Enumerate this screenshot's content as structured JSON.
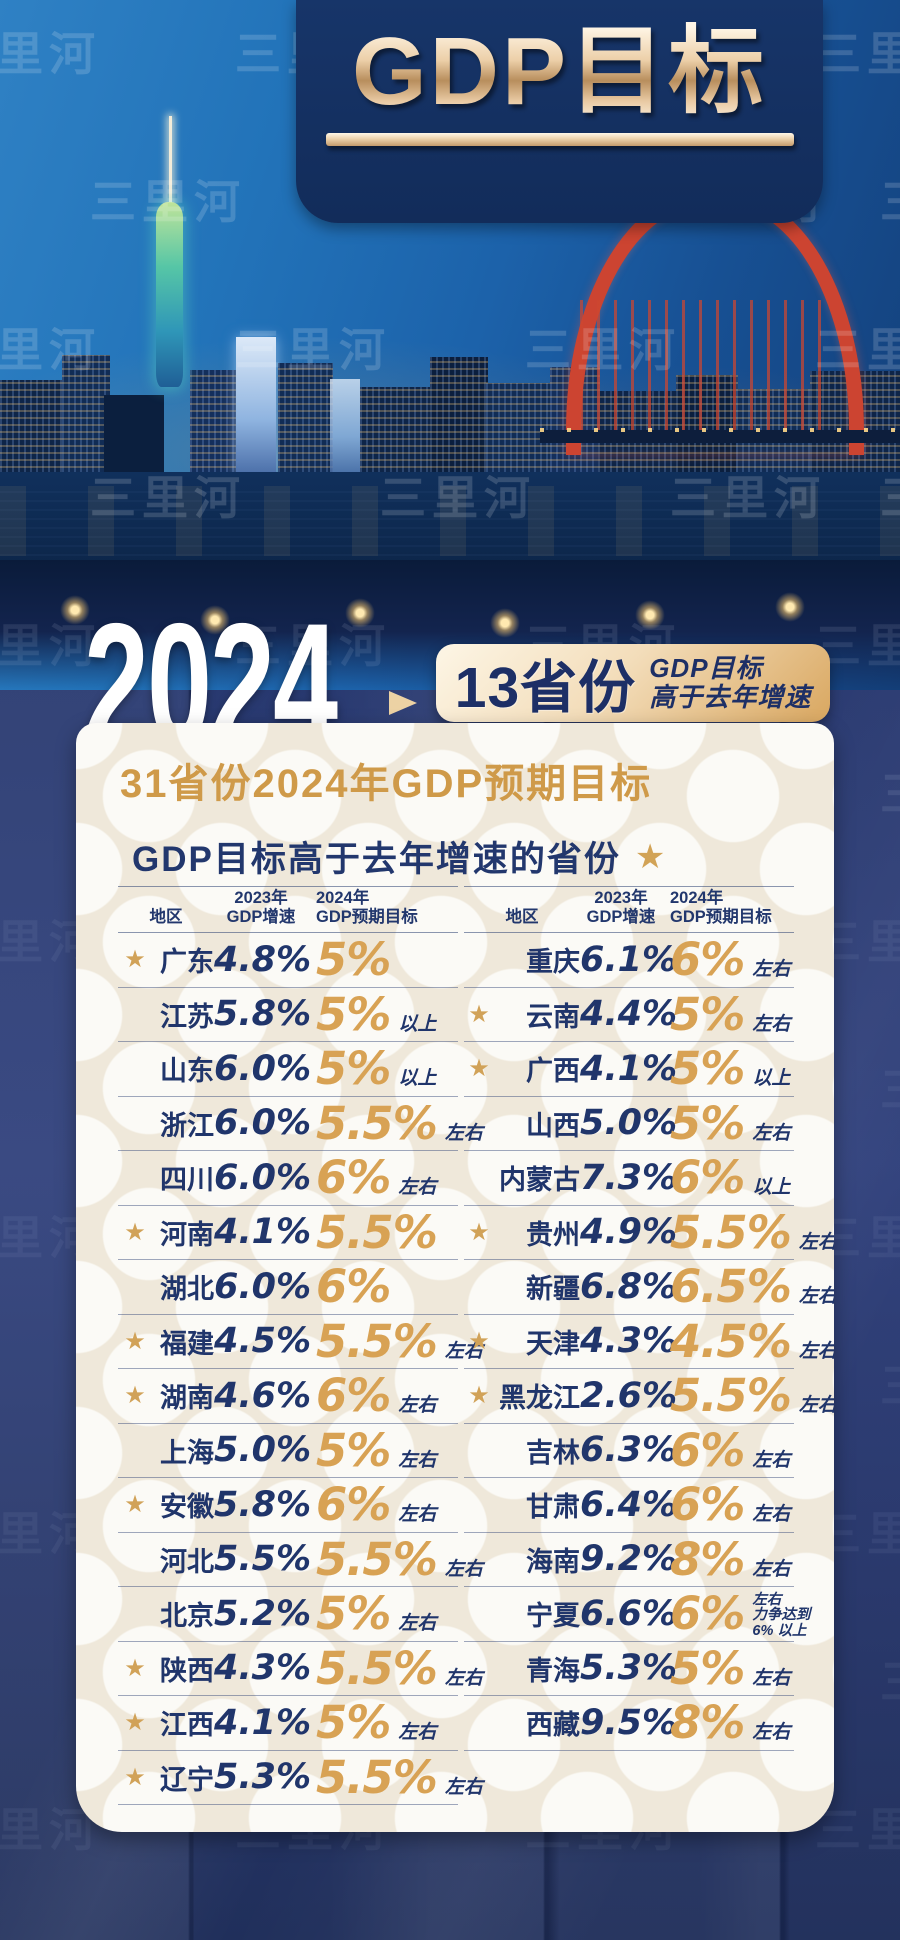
{
  "watermark_text": "三里河",
  "header": {
    "title": "GDP目标"
  },
  "hero": {
    "year": "2024",
    "badge_count": "13省份",
    "badge_line1": "GDP目标",
    "badge_line2": "高于去年增速"
  },
  "card": {
    "title": "31省份2024年GDP预期目标",
    "subtitle": "GDP目标高于去年增速的省份",
    "table_header": {
      "region": "地区",
      "col2023_line1": "2023年",
      "col2023_line2": "GDP增速",
      "col2024_line1": "2024年",
      "col2024_line2": "GDP预期目标"
    },
    "left_rows": [
      {
        "star": true,
        "region": "广东",
        "growth": "4.8%",
        "target": "5%",
        "suffix": []
      },
      {
        "star": false,
        "region": "江苏",
        "growth": "5.8%",
        "target": "5%",
        "suffix": [
          "以上"
        ]
      },
      {
        "star": false,
        "region": "山东",
        "growth": "6.0%",
        "target": "5%",
        "suffix": [
          "以上"
        ]
      },
      {
        "star": false,
        "region": "浙江",
        "growth": "6.0%",
        "target": "5.5%",
        "suffix": [
          "左右"
        ]
      },
      {
        "star": false,
        "region": "四川",
        "growth": "6.0%",
        "target": "6%",
        "suffix": [
          "左右"
        ]
      },
      {
        "star": true,
        "region": "河南",
        "growth": "4.1%",
        "target": "5.5%",
        "suffix": []
      },
      {
        "star": false,
        "region": "湖北",
        "growth": "6.0%",
        "target": "6%",
        "suffix": []
      },
      {
        "star": true,
        "region": "福建",
        "growth": "4.5%",
        "target": "5.5%",
        "suffix": [
          "左右"
        ]
      },
      {
        "star": true,
        "region": "湖南",
        "growth": "4.6%",
        "target": "6%",
        "suffix": [
          "左右"
        ]
      },
      {
        "star": false,
        "region": "上海",
        "growth": "5.0%",
        "target": "5%",
        "suffix": [
          "左右"
        ]
      },
      {
        "star": true,
        "region": "安徽",
        "growth": "5.8%",
        "target": "6%",
        "suffix": [
          "左右"
        ]
      },
      {
        "star": false,
        "region": "河北",
        "growth": "5.5%",
        "target": "5.5%",
        "suffix": [
          "左右"
        ]
      },
      {
        "star": false,
        "region": "北京",
        "growth": "5.2%",
        "target": "5%",
        "suffix": [
          "左右"
        ]
      },
      {
        "star": true,
        "region": "陕西",
        "growth": "4.3%",
        "target": "5.5%",
        "suffix": [
          "左右"
        ]
      },
      {
        "star": true,
        "region": "江西",
        "growth": "4.1%",
        "target": "5%",
        "suffix": [
          "左右"
        ]
      },
      {
        "star": true,
        "region": "辽宁",
        "growth": "5.3%",
        "target": "5.5%",
        "suffix": [
          "左右"
        ]
      }
    ],
    "right_rows": [
      {
        "star": false,
        "region": "重庆",
        "growth": "6.1%",
        "target": "6%",
        "suffix": [
          "左右"
        ]
      },
      {
        "star": true,
        "region": "云南",
        "growth": "4.4%",
        "target": "5%",
        "suffix": [
          "左右"
        ]
      },
      {
        "star": true,
        "region": "广西",
        "growth": "4.1%",
        "target": "5%",
        "suffix": [
          "以上"
        ]
      },
      {
        "star": false,
        "region": "山西",
        "growth": "5.0%",
        "target": "5%",
        "suffix": [
          "左右"
        ]
      },
      {
        "star": false,
        "region": "内蒙古",
        "growth": "7.3%",
        "target": "6%",
        "suffix": [
          "以上"
        ]
      },
      {
        "star": true,
        "region": "贵州",
        "growth": "4.9%",
        "target": "5.5%",
        "suffix": [
          "左右"
        ]
      },
      {
        "star": false,
        "region": "新疆",
        "growth": "6.8%",
        "target": "6.5%",
        "suffix": [
          "左右"
        ]
      },
      {
        "star": true,
        "region": "天津",
        "growth": "4.3%",
        "target": "4.5%",
        "suffix": [
          "左右"
        ]
      },
      {
        "star": true,
        "region": "黑龙江",
        "growth": "2.6%",
        "target": "5.5%",
        "suffix": [
          "左右"
        ]
      },
      {
        "star": false,
        "region": "吉林",
        "growth": "6.3%",
        "target": "6%",
        "suffix": [
          "左右"
        ]
      },
      {
        "star": false,
        "region": "甘肃",
        "growth": "6.4%",
        "target": "6%",
        "suffix": [
          "左右"
        ]
      },
      {
        "star": false,
        "region": "海南",
        "growth": "9.2%",
        "target": "8%",
        "suffix": [
          "左右"
        ]
      },
      {
        "star": false,
        "region": "宁夏",
        "growth": "6.6%",
        "target": "6%",
        "suffix": [
          "左右",
          "力争达到",
          "6% 以上"
        ]
      },
      {
        "star": false,
        "region": "青海",
        "growth": "5.3%",
        "target": "5%",
        "suffix": [
          "左右"
        ]
      },
      {
        "star": false,
        "region": "西藏",
        "growth": "9.5%",
        "target": "8%",
        "suffix": [
          "左右"
        ]
      }
    ]
  },
  "colors": {
    "navy_text": "#20356b",
    "gold_value": "#d8a254",
    "title_gold": "#cf9a49",
    "badge_gradient_from": "#fdf6e6",
    "badge_gradient_to": "#d9a760",
    "header_panel": "#173569",
    "star": "#d1a258"
  },
  "chart_data": {
    "type": "table",
    "title": "31省份2024年GDP预期目标",
    "subtitle": "GDP目标高于去年增速的省份",
    "note_badge": "13省份GDP目标高于去年增速",
    "columns": [
      "地区",
      "2023年GDP增速",
      "2024年GDP预期目标"
    ],
    "rows": [
      {
        "region": "广东",
        "growth_2023": "4.8%",
        "target_2024": "5%",
        "higher_than_last_year": true
      },
      {
        "region": "江苏",
        "growth_2023": "5.8%",
        "target_2024": "5%以上",
        "higher_than_last_year": false
      },
      {
        "region": "山东",
        "growth_2023": "6.0%",
        "target_2024": "5%以上",
        "higher_than_last_year": false
      },
      {
        "region": "浙江",
        "growth_2023": "6.0%",
        "target_2024": "5.5%左右",
        "higher_than_last_year": false
      },
      {
        "region": "四川",
        "growth_2023": "6.0%",
        "target_2024": "6%左右",
        "higher_than_last_year": false
      },
      {
        "region": "河南",
        "growth_2023": "4.1%",
        "target_2024": "5.5%",
        "higher_than_last_year": true
      },
      {
        "region": "湖北",
        "growth_2023": "6.0%",
        "target_2024": "6%",
        "higher_than_last_year": false
      },
      {
        "region": "福建",
        "growth_2023": "4.5%",
        "target_2024": "5.5%左右",
        "higher_than_last_year": true
      },
      {
        "region": "湖南",
        "growth_2023": "4.6%",
        "target_2024": "6%左右",
        "higher_than_last_year": true
      },
      {
        "region": "上海",
        "growth_2023": "5.0%",
        "target_2024": "5%左右",
        "higher_than_last_year": false
      },
      {
        "region": "安徽",
        "growth_2023": "5.8%",
        "target_2024": "6%左右",
        "higher_than_last_year": true
      },
      {
        "region": "河北",
        "growth_2023": "5.5%",
        "target_2024": "5.5%左右",
        "higher_than_last_year": false
      },
      {
        "region": "北京",
        "growth_2023": "5.2%",
        "target_2024": "5%左右",
        "higher_than_last_year": false
      },
      {
        "region": "陕西",
        "growth_2023": "4.3%",
        "target_2024": "5.5%左右",
        "higher_than_last_year": true
      },
      {
        "region": "江西",
        "growth_2023": "4.1%",
        "target_2024": "5%左右",
        "higher_than_last_year": true
      },
      {
        "region": "辽宁",
        "growth_2023": "5.3%",
        "target_2024": "5.5%左右",
        "higher_than_last_year": true
      },
      {
        "region": "重庆",
        "growth_2023": "6.1%",
        "target_2024": "6%左右",
        "higher_than_last_year": false
      },
      {
        "region": "云南",
        "growth_2023": "4.4%",
        "target_2024": "5%左右",
        "higher_than_last_year": true
      },
      {
        "region": "广西",
        "growth_2023": "4.1%",
        "target_2024": "5%以上",
        "higher_than_last_year": true
      },
      {
        "region": "山西",
        "growth_2023": "5.0%",
        "target_2024": "5%左右",
        "higher_than_last_year": false
      },
      {
        "region": "内蒙古",
        "growth_2023": "7.3%",
        "target_2024": "6%以上",
        "higher_than_last_year": false
      },
      {
        "region": "贵州",
        "growth_2023": "4.9%",
        "target_2024": "5.5%左右",
        "higher_than_last_year": true
      },
      {
        "region": "新疆",
        "growth_2023": "6.8%",
        "target_2024": "6.5%左右",
        "higher_than_last_year": false
      },
      {
        "region": "天津",
        "growth_2023": "4.3%",
        "target_2024": "4.5%左右",
        "higher_than_last_year": true
      },
      {
        "region": "黑龙江",
        "growth_2023": "2.6%",
        "target_2024": "5.5%左右",
        "higher_than_last_year": true
      },
      {
        "region": "吉林",
        "growth_2023": "6.3%",
        "target_2024": "6%左右",
        "higher_than_last_year": false
      },
      {
        "region": "甘肃",
        "growth_2023": "6.4%",
        "target_2024": "6%左右",
        "higher_than_last_year": false
      },
      {
        "region": "海南",
        "growth_2023": "9.2%",
        "target_2024": "8%左右",
        "higher_than_last_year": false
      },
      {
        "region": "宁夏",
        "growth_2023": "6.6%",
        "target_2024": "6%左右，力争达到6%以上",
        "higher_than_last_year": false
      },
      {
        "region": "青海",
        "growth_2023": "5.3%",
        "target_2024": "5%左右",
        "higher_than_last_year": false
      },
      {
        "region": "西藏",
        "growth_2023": "9.5%",
        "target_2024": "8%左右",
        "higher_than_last_year": false
      }
    ]
  }
}
